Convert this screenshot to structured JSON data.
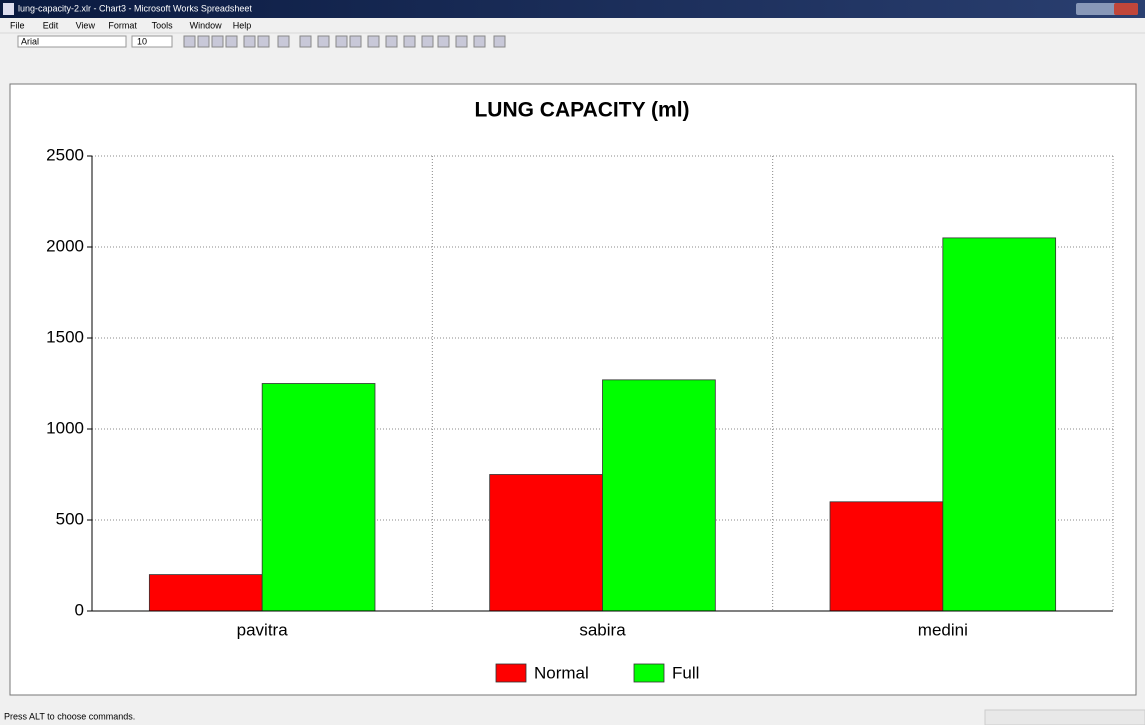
{
  "window": {
    "title": "lung-capacity-2.xlr - Chart3 - Microsoft Works Spreadsheet"
  },
  "menu": [
    "File",
    "Edit",
    "View",
    "Format",
    "Tools",
    "Window",
    "Help"
  ],
  "toolbar": {
    "font": "Arial",
    "size": "10"
  },
  "status": "Press ALT to choose commands.",
  "chart_data": {
    "type": "bar",
    "title": "LUNG CAPACITY (ml)",
    "categories": [
      "pavitra",
      "sabira",
      "medini"
    ],
    "series": [
      {
        "name": "Normal",
        "color": "#ff0000",
        "values": [
          200,
          750,
          600
        ]
      },
      {
        "name": "Full",
        "color": "#00ff00",
        "values": [
          1250,
          1270,
          2050
        ]
      }
    ],
    "ylim": [
      0,
      2500
    ],
    "yticks": [
      0,
      500,
      1000,
      1500,
      2000,
      2500
    ],
    "grid": true,
    "legend": "bottom"
  }
}
